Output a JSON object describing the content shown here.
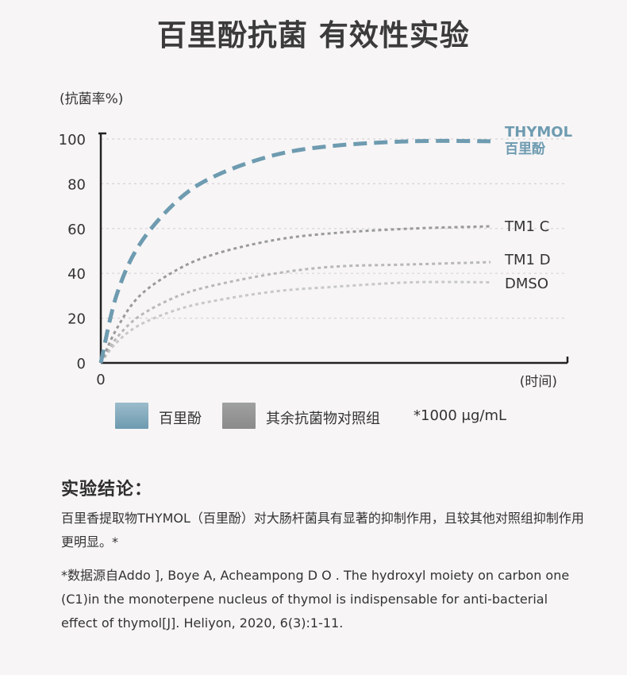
{
  "title": "百里酚抗菌 有效性实验",
  "chart_data": {
    "type": "line",
    "ylabel": "(抗菌率%)",
    "xlabel": "(时间)",
    "x_origin_label": "0",
    "yticks": [
      0,
      20,
      40,
      60,
      80,
      100
    ],
    "ylim": [
      0,
      100
    ],
    "grid": true,
    "x": [
      0,
      0.04,
      0.1,
      0.2,
      0.3,
      0.45,
      0.6,
      0.8,
      1.0
    ],
    "series": [
      {
        "name": "THYMOL",
        "name2": "百里酚",
        "color": "#6e9bb0",
        "values": [
          0,
          30,
          53,
          73,
          84,
          93,
          97,
          99,
          99
        ]
      },
      {
        "name": "TM1 C",
        "color": "#9a9a9a",
        "values": [
          0,
          15,
          30,
          42,
          49,
          55,
          58,
          60,
          61
        ]
      },
      {
        "name": "TM1 D",
        "color": "#b8b8b8",
        "values": [
          0,
          11,
          21,
          30,
          35,
          40,
          43,
          44,
          45
        ]
      },
      {
        "name": "DMSO",
        "color": "#c8c8c8",
        "values": [
          0,
          9,
          17,
          24,
          28,
          32,
          34,
          36,
          36
        ]
      }
    ]
  },
  "legend": {
    "thymol_label": "百里酚",
    "thymol_color": "#6e9bb0",
    "others_label": "其余抗菌物对照组",
    "others_color": "#8a8a8a",
    "note": "*1000 μg/mL"
  },
  "conclusion": {
    "heading": "实验结论：",
    "body": "百里香提取物THYMOL（百里酚）对大肠杆菌具有显著的抑制作用，且较其他对照组抑制作用更明显。*",
    "reference": "*数据源自Addo ], Boye A, Acheampong D O . The hydroxyl moiety on carbon one (C1)in the monoterpene nucleus of thymol is indispensable for anti-bacterial effect of thymol[J]. Heliyon, 2020, 6(3):1-11."
  }
}
